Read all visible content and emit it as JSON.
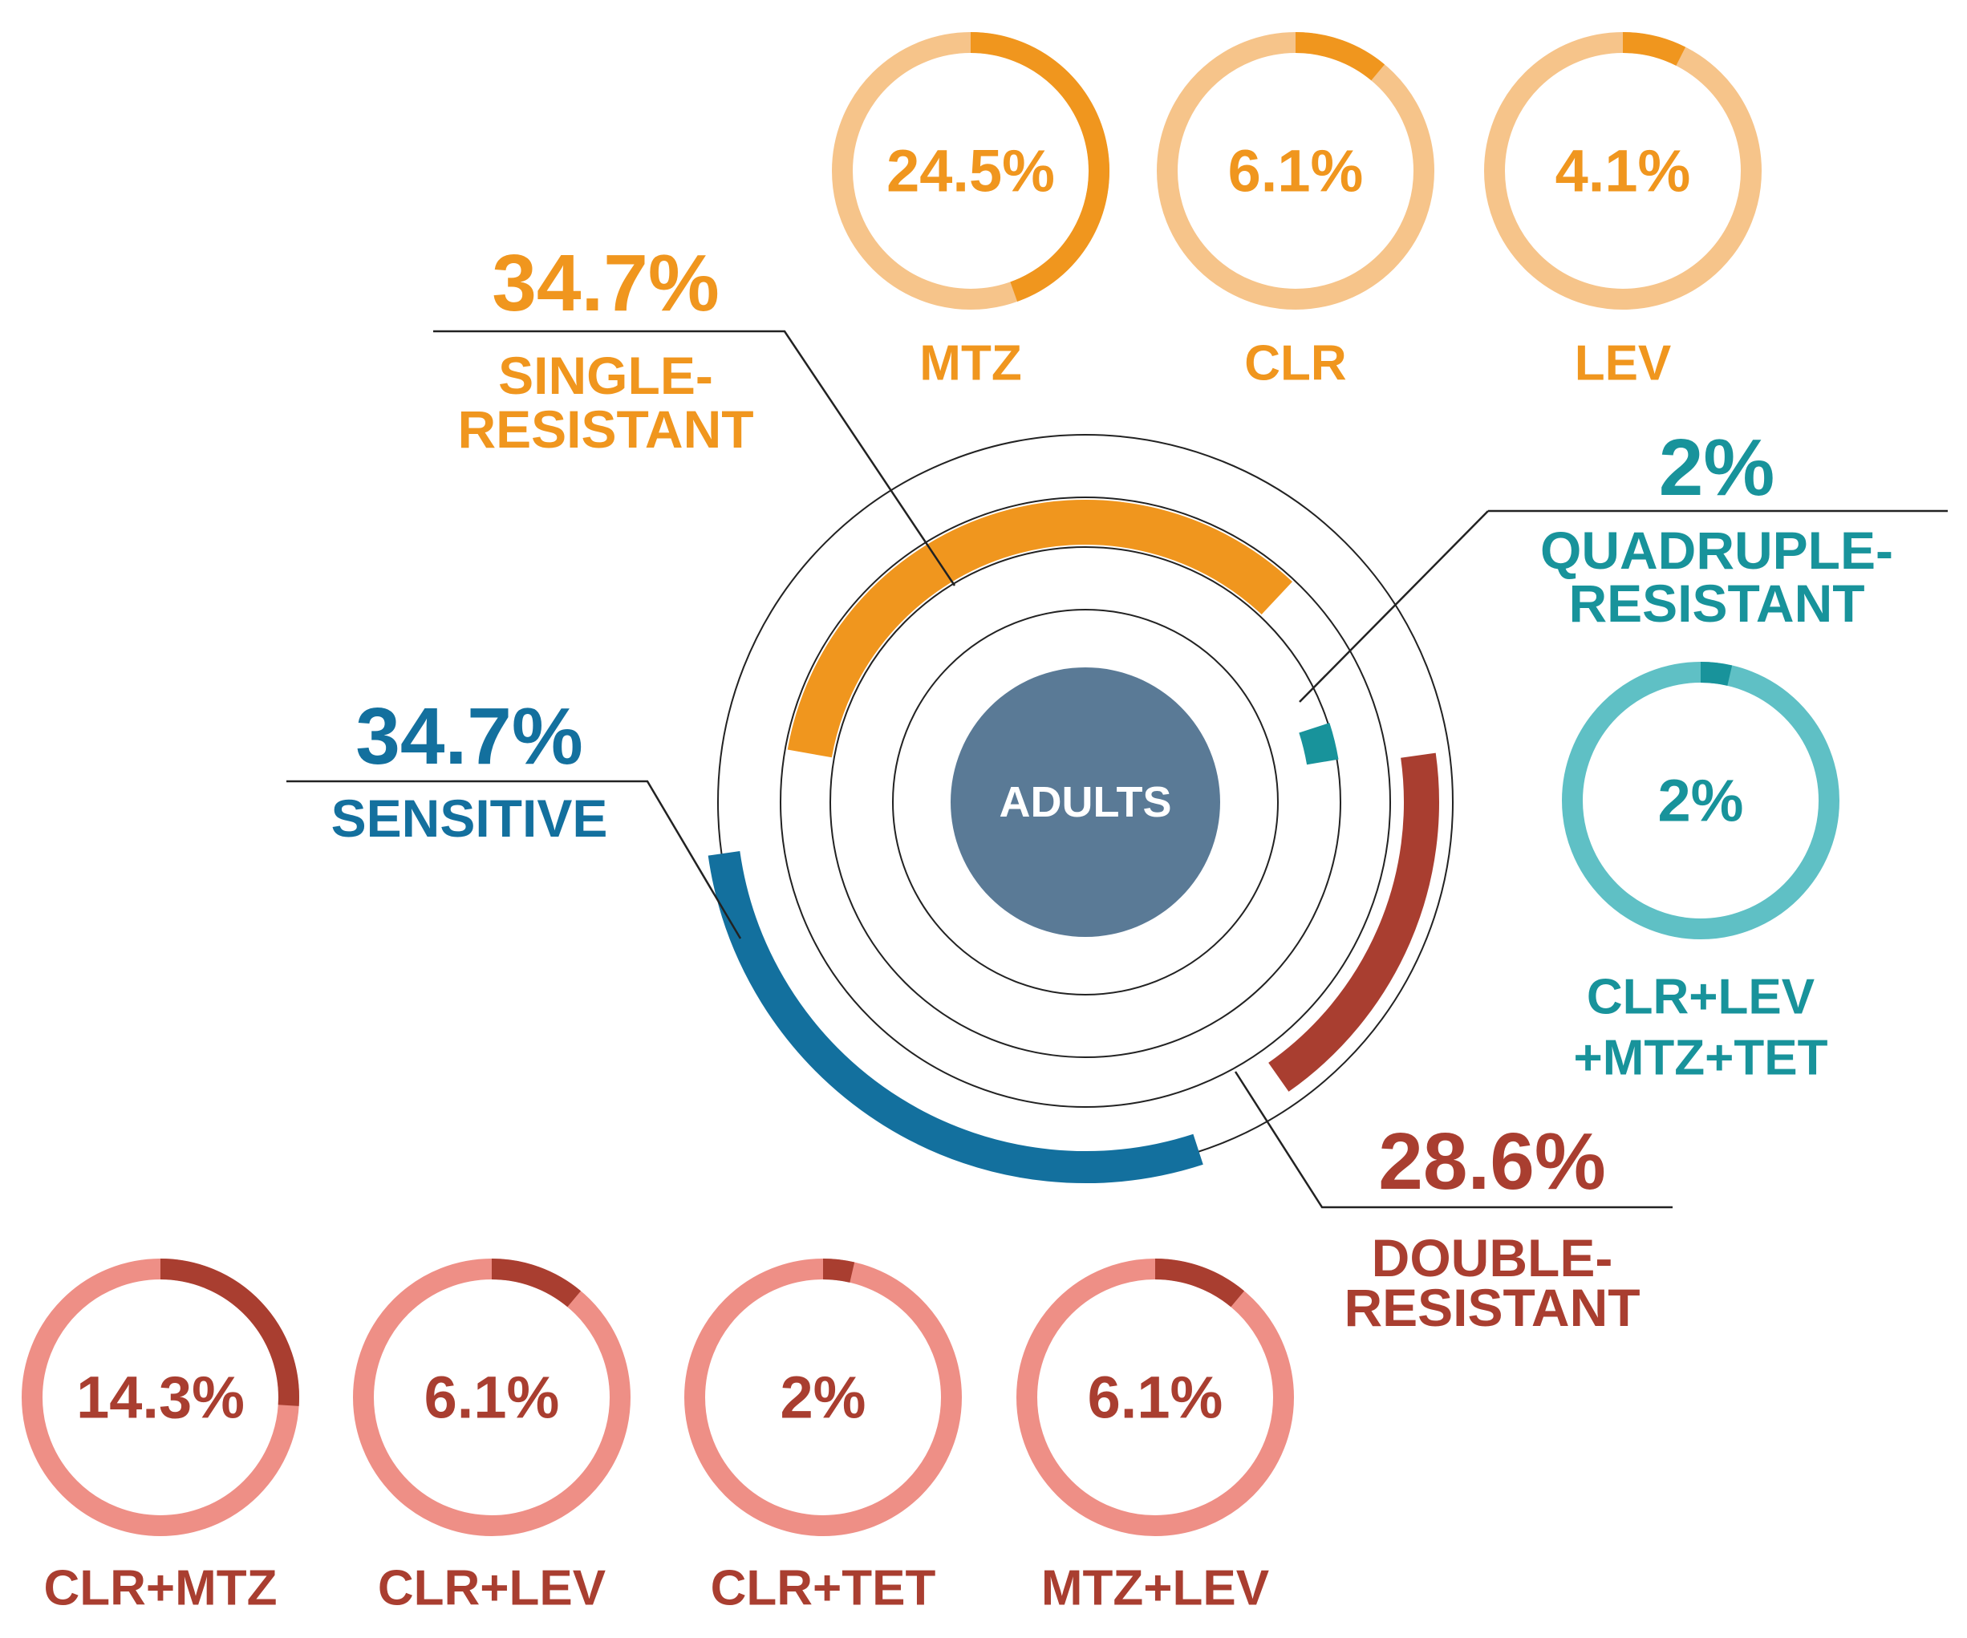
{
  "colors": {
    "single": "#F0961E",
    "single_light": "#F6C48A",
    "sensitive": "#13709E",
    "double": "#A93E30",
    "double_light": "#EE8F86",
    "quadruple": "#18939B",
    "quadruple_light": "#5FC0C5",
    "center": "#5A7A96",
    "rings": "#222222",
    "leader": "#222222"
  },
  "chart_data": {
    "type": "pie",
    "title": "",
    "center_label": "ADULTS",
    "categories": [
      {
        "key": "single",
        "percent_label": "34.7%",
        "name_line1": "SINGLE-",
        "name_line2": "RESISTANT",
        "value": 34.7
      },
      {
        "key": "sensitive",
        "percent_label": "34.7%",
        "name_line1": "SENSITIVE",
        "name_line2": "",
        "value": 34.7
      },
      {
        "key": "double",
        "percent_label": "28.6%",
        "name_line1": "DOUBLE-",
        "name_line2": "RESISTANT",
        "value": 28.6
      },
      {
        "key": "quadruple",
        "percent_label": "2%",
        "name_line1": "QUADRUPLE-",
        "name_line2": "RESISTANT",
        "value": 2.0
      }
    ],
    "single_breakdown": [
      {
        "label": "MTZ",
        "value": 24.5,
        "value_label": "24.5%"
      },
      {
        "label": "CLR",
        "value": 6.1,
        "value_label": "6.1%"
      },
      {
        "label": "LEV",
        "value": 4.1,
        "value_label": "4.1%"
      }
    ],
    "double_breakdown": [
      {
        "label": "CLR+MTZ",
        "value": 14.3,
        "value_label": "14.3%"
      },
      {
        "label": "CLR+LEV",
        "value": 6.1,
        "value_label": "6.1%"
      },
      {
        "label": "CLR+TET",
        "value": 2.0,
        "value_label": "2%"
      },
      {
        "label": "MTZ+LEV",
        "value": 6.1,
        "value_label": "6.1%"
      }
    ],
    "quadruple_breakdown": [
      {
        "label_line1": "CLR+LEV",
        "label_line2": "+MTZ+TET",
        "value": 2.0,
        "value_label": "2%"
      }
    ]
  }
}
